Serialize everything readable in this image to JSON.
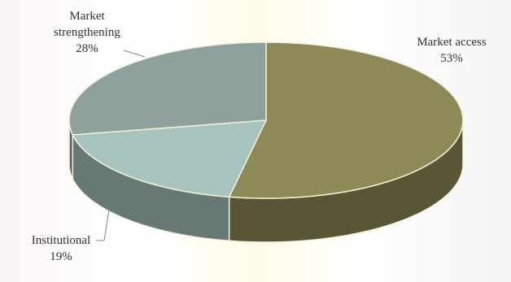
{
  "chart_data": {
    "type": "pie3d",
    "categories": [
      "Market access",
      "Institutional",
      "Market strengthening"
    ],
    "values": [
      53,
      19,
      28
    ],
    "value_labels": [
      "53%",
      "19%",
      "28%"
    ],
    "colors": [
      "#8e8a57",
      "#a6c3bd",
      "#8ea19d"
    ]
  }
}
